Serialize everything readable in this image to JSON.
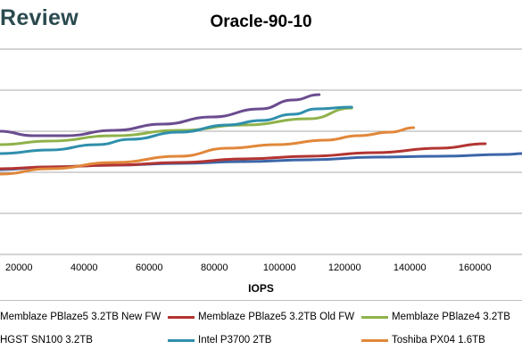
{
  "header": {
    "brand": "Review"
  },
  "chart_data": {
    "type": "line",
    "title": "Oracle-90-10",
    "xlabel": "IOPS",
    "ylabel": "",
    "x_ticks": [
      "20000",
      "40000",
      "60000",
      "80000",
      "100000",
      "120000",
      "140000",
      "160000"
    ],
    "grid": true,
    "legend_position": "bottom",
    "series": [
      {
        "name": "Memblaze PBlaze5 3.2TB New FW",
        "color": "#3c66a8",
        "points": [
          [
            15000,
            190
          ],
          [
            30000,
            187
          ],
          [
            50000,
            185
          ],
          [
            70000,
            183
          ],
          [
            90000,
            181
          ],
          [
            110000,
            179
          ],
          [
            130000,
            176
          ],
          [
            150000,
            175
          ],
          [
            170000,
            173
          ],
          [
            176000,
            172
          ]
        ]
      },
      {
        "name": "Memblaze PBlaze5 3.2TB Old FW",
        "color": "#b23432",
        "points": [
          [
            15000,
            189
          ],
          [
            30000,
            187
          ],
          [
            50000,
            185
          ],
          [
            70000,
            182
          ],
          [
            90000,
            178
          ],
          [
            110000,
            175
          ],
          [
            130000,
            171
          ],
          [
            150000,
            166
          ],
          [
            164000,
            161
          ]
        ]
      },
      {
        "name": "Memblaze PBlaze4 3.2TB",
        "color": "#8fb24a",
        "points": [
          [
            15000,
            162
          ],
          [
            30000,
            158
          ],
          [
            50000,
            152
          ],
          [
            70000,
            146
          ],
          [
            90000,
            140
          ],
          [
            110000,
            133
          ],
          [
            123000,
            121
          ]
        ]
      },
      {
        "name": "HGST SN100 3.2TB",
        "color": "#6b4c8f",
        "points": [
          [
            15000,
            147
          ],
          [
            25000,
            152
          ],
          [
            35000,
            152
          ],
          [
            50000,
            146
          ],
          [
            65000,
            139
          ],
          [
            80000,
            131
          ],
          [
            95000,
            122
          ],
          [
            105000,
            112
          ],
          [
            113000,
            106
          ]
        ]
      },
      {
        "name": "Intel P3700 2TB",
        "color": "#2f8fac",
        "points": [
          [
            15000,
            172
          ],
          [
            30000,
            168
          ],
          [
            45000,
            162
          ],
          [
            55000,
            156
          ],
          [
            70000,
            148
          ],
          [
            85000,
            140
          ],
          [
            95000,
            135
          ],
          [
            105000,
            128
          ],
          [
            112000,
            122
          ],
          [
            123000,
            120
          ]
        ]
      },
      {
        "name": "Toshiba PX04 1.6TB",
        "color": "#e1873a",
        "points": [
          [
            15000,
            195
          ],
          [
            30000,
            189
          ],
          [
            50000,
            182
          ],
          [
            70000,
            175
          ],
          [
            85000,
            166
          ],
          [
            100000,
            162
          ],
          [
            115000,
            157
          ],
          [
            125000,
            152
          ],
          [
            135000,
            148
          ],
          [
            142000,
            143
          ]
        ]
      }
    ]
  }
}
